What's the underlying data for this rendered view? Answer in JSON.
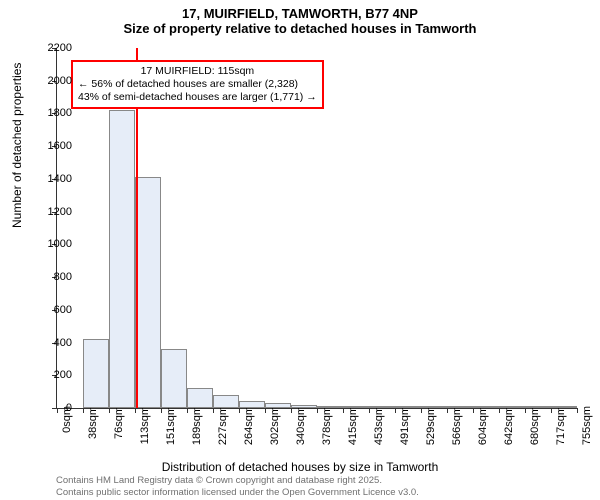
{
  "titles": {
    "main": "17, MUIRFIELD, TAMWORTH, B77 4NP",
    "sub": "Size of property relative to detached houses in Tamworth"
  },
  "axes": {
    "y_title": "Number of detached properties",
    "x_title": "Distribution of detached houses by size in Tamworth",
    "ylim": [
      0,
      2200
    ],
    "y_ticks": [
      0,
      200,
      400,
      600,
      800,
      1000,
      1200,
      1400,
      1600,
      1800,
      2000,
      2200
    ],
    "x_ticks": [
      "0sqm",
      "38sqm",
      "76sqm",
      "113sqm",
      "151sqm",
      "189sqm",
      "227sqm",
      "264sqm",
      "302sqm",
      "340sqm",
      "378sqm",
      "415sqm",
      "453sqm",
      "491sqm",
      "529sqm",
      "566sqm",
      "604sqm",
      "642sqm",
      "680sqm",
      "717sqm",
      "755sqm"
    ]
  },
  "histogram": {
    "type": "histogram",
    "bar_fill": "#e6edf8",
    "bar_border": "#888888",
    "values": [
      0,
      420,
      1820,
      1410,
      360,
      120,
      80,
      40,
      30,
      20,
      15,
      10,
      8,
      6,
      5,
      4,
      2,
      2,
      1,
      1
    ],
    "bin_count": 20
  },
  "marker": {
    "position_sqm": 115,
    "color": "#ff0000",
    "label_line1": "17 MUIRFIELD: 115sqm",
    "label_line2": "← 56% of detached houses are smaller (2,328)",
    "label_line3": "43% of semi-detached houses are larger (1,771) →"
  },
  "footer": {
    "line1": "Contains HM Land Registry data © Crown copyright and database right 2025.",
    "line2": "Contains public sector information licensed under the Open Government Licence v3.0."
  },
  "style": {
    "background": "#ffffff",
    "axis_color": "#333333",
    "title_fontsize": 13,
    "tick_fontsize": 11,
    "axis_title_fontsize": 12,
    "footer_color": "#707070"
  }
}
